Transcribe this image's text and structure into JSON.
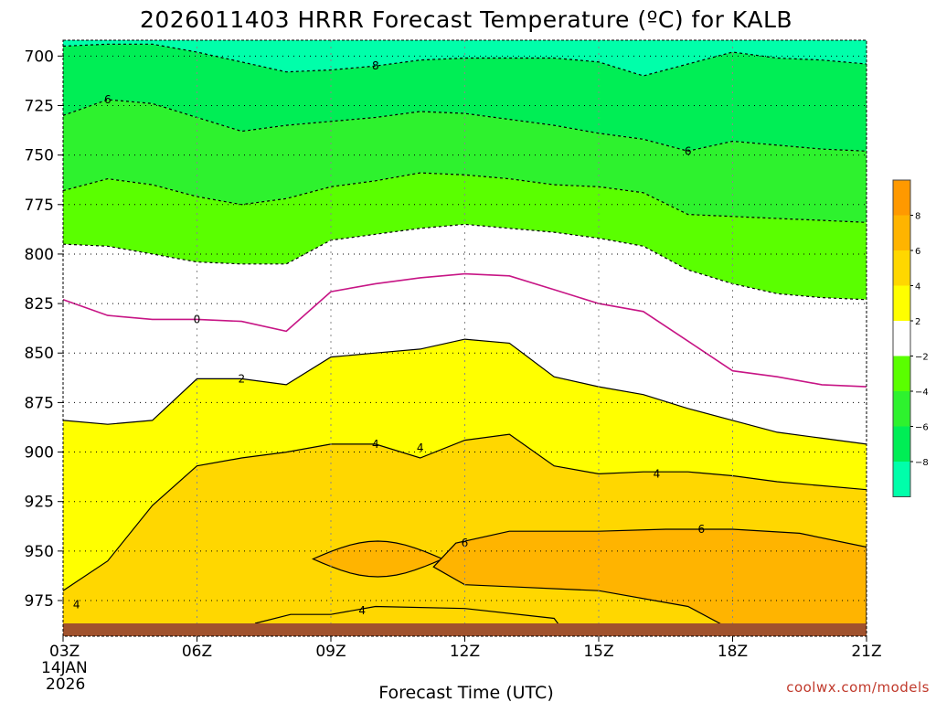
{
  "chart_data": {
    "type": "contour",
    "title": "2026011403 HRRR Forecast Temperature (ºC) for KALB",
    "xlabel": "Forecast Time (UTC)",
    "ylabel": "",
    "x_date_line1": "14JAN",
    "x_date_line2": "2026",
    "xticks": [
      "03Z",
      "06Z",
      "09Z",
      "12Z",
      "15Z",
      "18Z",
      "21Z"
    ],
    "xlim_hours": [
      3,
      21
    ],
    "ylim_hpa": [
      993,
      692
    ],
    "yticks": [
      "700",
      "725",
      "750",
      "775",
      "800",
      "825",
      "850",
      "875",
      "900",
      "925",
      "950",
      "975"
    ],
    "hours": [
      3,
      4,
      5,
      6,
      7,
      8,
      9,
      10,
      11,
      12,
      13,
      14,
      15,
      16,
      17,
      18,
      19,
      20,
      21
    ],
    "isotherms": [
      {
        "temp": -8,
        "label": "8",
        "dashed": true,
        "label_hour": 10,
        "p": [
          695,
          694,
          694,
          698,
          703,
          708,
          707,
          705,
          702,
          701,
          701,
          701,
          703,
          710,
          704,
          698,
          701,
          702,
          704
        ]
      },
      {
        "temp": -6,
        "label": "6",
        "dashed": true,
        "label_hour": 17,
        "p": [
          730,
          722,
          724,
          731,
          738,
          735,
          733,
          731,
          728,
          729,
          732,
          735,
          739,
          742,
          748,
          743,
          745,
          747,
          748
        ]
      },
      {
        "temp": -4,
        "label": "",
        "dashed": true,
        "label_hour": 0,
        "p": [
          768,
          762,
          765,
          771,
          775,
          772,
          766,
          763,
          759,
          760,
          762,
          765,
          766,
          769,
          780,
          781,
          782,
          783,
          784
        ]
      },
      {
        "temp": -2,
        "label": "",
        "dashed": true,
        "label_hour": 0,
        "p": [
          795,
          796,
          800,
          804,
          805,
          805,
          793,
          790,
          787,
          785,
          787,
          789,
          792,
          796,
          808,
          815,
          820,
          822,
          823
        ]
      },
      {
        "temp": 0,
        "label": "0",
        "dashed": false,
        "label_hour": 6,
        "p": [
          823,
          831,
          833,
          833,
          834,
          839,
          819,
          815,
          812,
          810,
          811,
          818,
          825,
          829,
          844,
          859,
          862,
          866,
          867
        ]
      },
      {
        "temp": 2,
        "label": "2",
        "dashed": false,
        "label_hour": 7,
        "p": [
          884,
          886,
          884,
          863,
          863,
          866,
          852,
          850,
          848,
          843,
          845,
          862,
          867,
          871,
          878,
          884,
          890,
          893,
          896
        ]
      },
      {
        "temp": 4,
        "label": "4",
        "dashed": false,
        "label_hour": 10,
        "p": [
          970,
          955,
          927,
          907,
          903,
          900,
          896,
          896,
          903,
          894,
          891,
          907,
          911,
          910,
          910,
          912,
          915,
          917,
          919
        ]
      }
    ],
    "colorbar": {
      "labels": [
        "8",
        "6",
        "4",
        "2",
        "−2",
        "−4",
        "−6",
        "−8"
      ],
      "bins": [
        {
          "range": "8 to 10",
          "color": "#ff9900"
        },
        {
          "range": "6 to 8",
          "color": "#ffb400"
        },
        {
          "range": "4 to 6",
          "color": "#ffd700"
        },
        {
          "range": "2 to 4",
          "color": "#ffff00"
        },
        {
          "range": "-2 to 2",
          "color": "#ffffff"
        },
        {
          "range": "-4 to -2",
          "color": "#5aff00"
        },
        {
          "range": "-6 to -4",
          "color": "#2ef22e"
        },
        {
          "range": "-8 to -6",
          "color": "#00ee55"
        },
        {
          "range": "-10 to -8",
          "color": "#00ffaa"
        }
      ]
    },
    "colors": {
      "ground": "#a0522d",
      "freezing_line": "#c71585"
    }
  },
  "footer": {
    "credit": "coolwx.com/models"
  }
}
